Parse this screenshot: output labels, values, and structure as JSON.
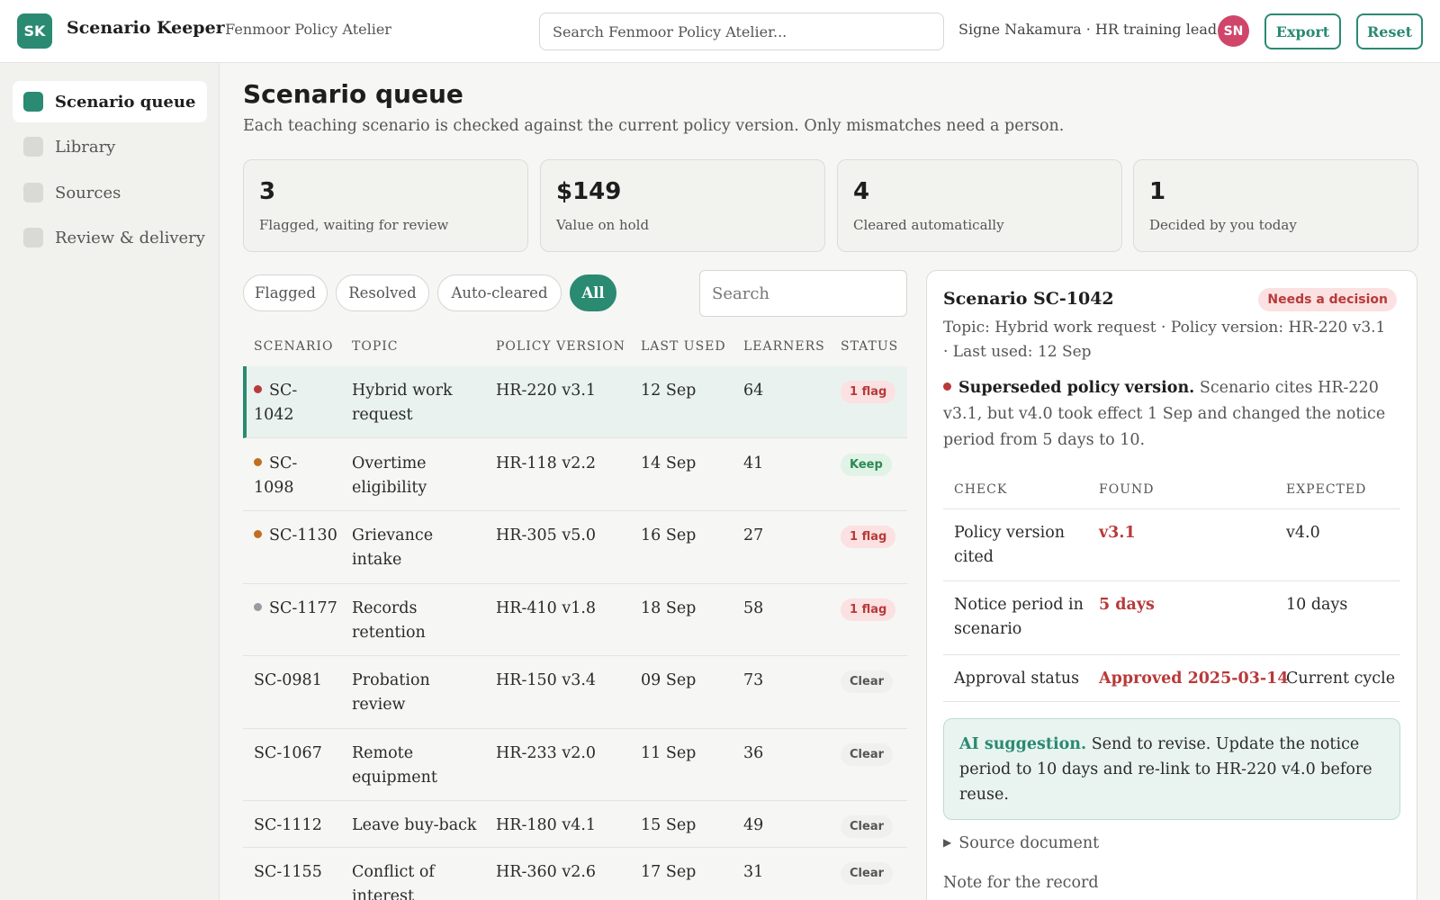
{
  "app": {
    "logo_initials": "SK",
    "name": "Scenario Keeper",
    "org": "· Fenmoor Policy Atelier",
    "search_placeholder": "Search Fenmoor Policy Atelier...",
    "user": "Signe Nakamura · HR training lead",
    "user_initials": "SN",
    "export_label": "Export",
    "reset_label": "Reset"
  },
  "sidebar": {
    "items": [
      {
        "label": "Scenario queue",
        "active": true
      },
      {
        "label": "Library",
        "active": false
      },
      {
        "label": "Sources",
        "active": false
      },
      {
        "label": "Review & delivery",
        "active": false
      }
    ]
  },
  "page": {
    "title": "Scenario queue",
    "subtitle": "Each teaching scenario is checked against the current policy version. Only mismatches need a person."
  },
  "stats": [
    {
      "value": "3",
      "label": "Flagged, waiting for review"
    },
    {
      "value": "$149",
      "label": "Value on hold"
    },
    {
      "value": "4",
      "label": "Cleared automatically"
    },
    {
      "value": "1",
      "label": "Decided by you today"
    }
  ],
  "filters": {
    "chips": [
      "Flagged",
      "Resolved",
      "Auto-cleared",
      "All"
    ],
    "active": "All",
    "search_placeholder": "Search"
  },
  "table": {
    "headers": [
      "SCENARIO",
      "TOPIC",
      "POLICY VERSION",
      "LAST USED",
      "LEARNERS",
      "STATUS"
    ],
    "rows": [
      {
        "id": "SC-\n1042",
        "topic": "Hybrid work\nrequest",
        "policy": "HR-220 v3.1",
        "last_used": "12 Sep",
        "learners": "64",
        "status": "1 flag",
        "status_kind": "flag",
        "dot": "#b83a3a",
        "selected": true
      },
      {
        "id": "SC-\n1098",
        "topic": "Overtime\neligibility",
        "policy": "HR-118 v2.2",
        "last_used": "14 Sep",
        "learners": "41",
        "status": "Keep",
        "status_kind": "keep",
        "dot": "#c0701e",
        "selected": false
      },
      {
        "id": "SC-1130",
        "topic": "Grievance\nintake",
        "policy": "HR-305 v5.0",
        "last_used": "16 Sep",
        "learners": "27",
        "status": "1 flag",
        "status_kind": "flag",
        "dot": "#c0701e",
        "selected": false
      },
      {
        "id": "SC-1177",
        "topic": "Records\nretention",
        "policy": "HR-410 v1.8",
        "last_used": "18 Sep",
        "learners": "58",
        "status": "1 flag",
        "status_kind": "flag",
        "dot": "#9a9aa2",
        "selected": false
      },
      {
        "id": "SC-0981",
        "topic": "Probation\nreview",
        "policy": "HR-150 v3.4",
        "last_used": "09 Sep",
        "learners": "73",
        "status": "Clear",
        "status_kind": "clear",
        "dot": "",
        "selected": false
      },
      {
        "id": "SC-1067",
        "topic": "Remote\nequipment",
        "policy": "HR-233 v2.0",
        "last_used": "11 Sep",
        "learners": "36",
        "status": "Clear",
        "status_kind": "clear",
        "dot": "",
        "selected": false
      },
      {
        "id": "SC-1112",
        "topic": "Leave buy-back",
        "policy": "HR-180 v4.1",
        "last_used": "15 Sep",
        "learners": "49",
        "status": "Clear",
        "status_kind": "clear",
        "dot": "",
        "selected": false
      },
      {
        "id": "SC-1155",
        "topic": "Conflict of\ninterest",
        "policy": "HR-360 v2.6",
        "last_used": "17 Sep",
        "learners": "31",
        "status": "Clear",
        "status_kind": "clear",
        "dot": "",
        "selected": false
      }
    ]
  },
  "detail": {
    "title": "Scenario SC-1042",
    "badge": "Needs a decision",
    "meta": "Topic: Hybrid work request · Policy version: HR-220 v3.1 · Last used: 12 Sep",
    "issue_title": "Superseded policy version.",
    "issue_text": " Scenario cites HR-220 v3.1, but v4.0 took effect 1 Sep and changed the notice period from 5 days to 10.",
    "issue_dot": "#b83a3a",
    "check_headers": [
      "CHECK",
      "FOUND",
      "EXPECTED"
    ],
    "checks": [
      {
        "check": "Policy version\ncited",
        "found": "v3.1",
        "expected": "v4.0"
      },
      {
        "check": "Notice period in\nscenario",
        "found": "5 days",
        "expected": "10 days"
      },
      {
        "check": "Approval status",
        "found": "Approved 2025-03-14",
        "expected": "Current cycle"
      }
    ],
    "ai_label": "AI suggestion.",
    "ai_text": " Send to revise. Update the notice period to 10 days and re-link to HR-220 v4.0 before reuse.",
    "source_doc": "Source document",
    "note_label": "Note for the record"
  },
  "colors": {
    "accent": "#2a8a72",
    "flag": "#b83a3a",
    "keep": "#2a8a52"
  }
}
